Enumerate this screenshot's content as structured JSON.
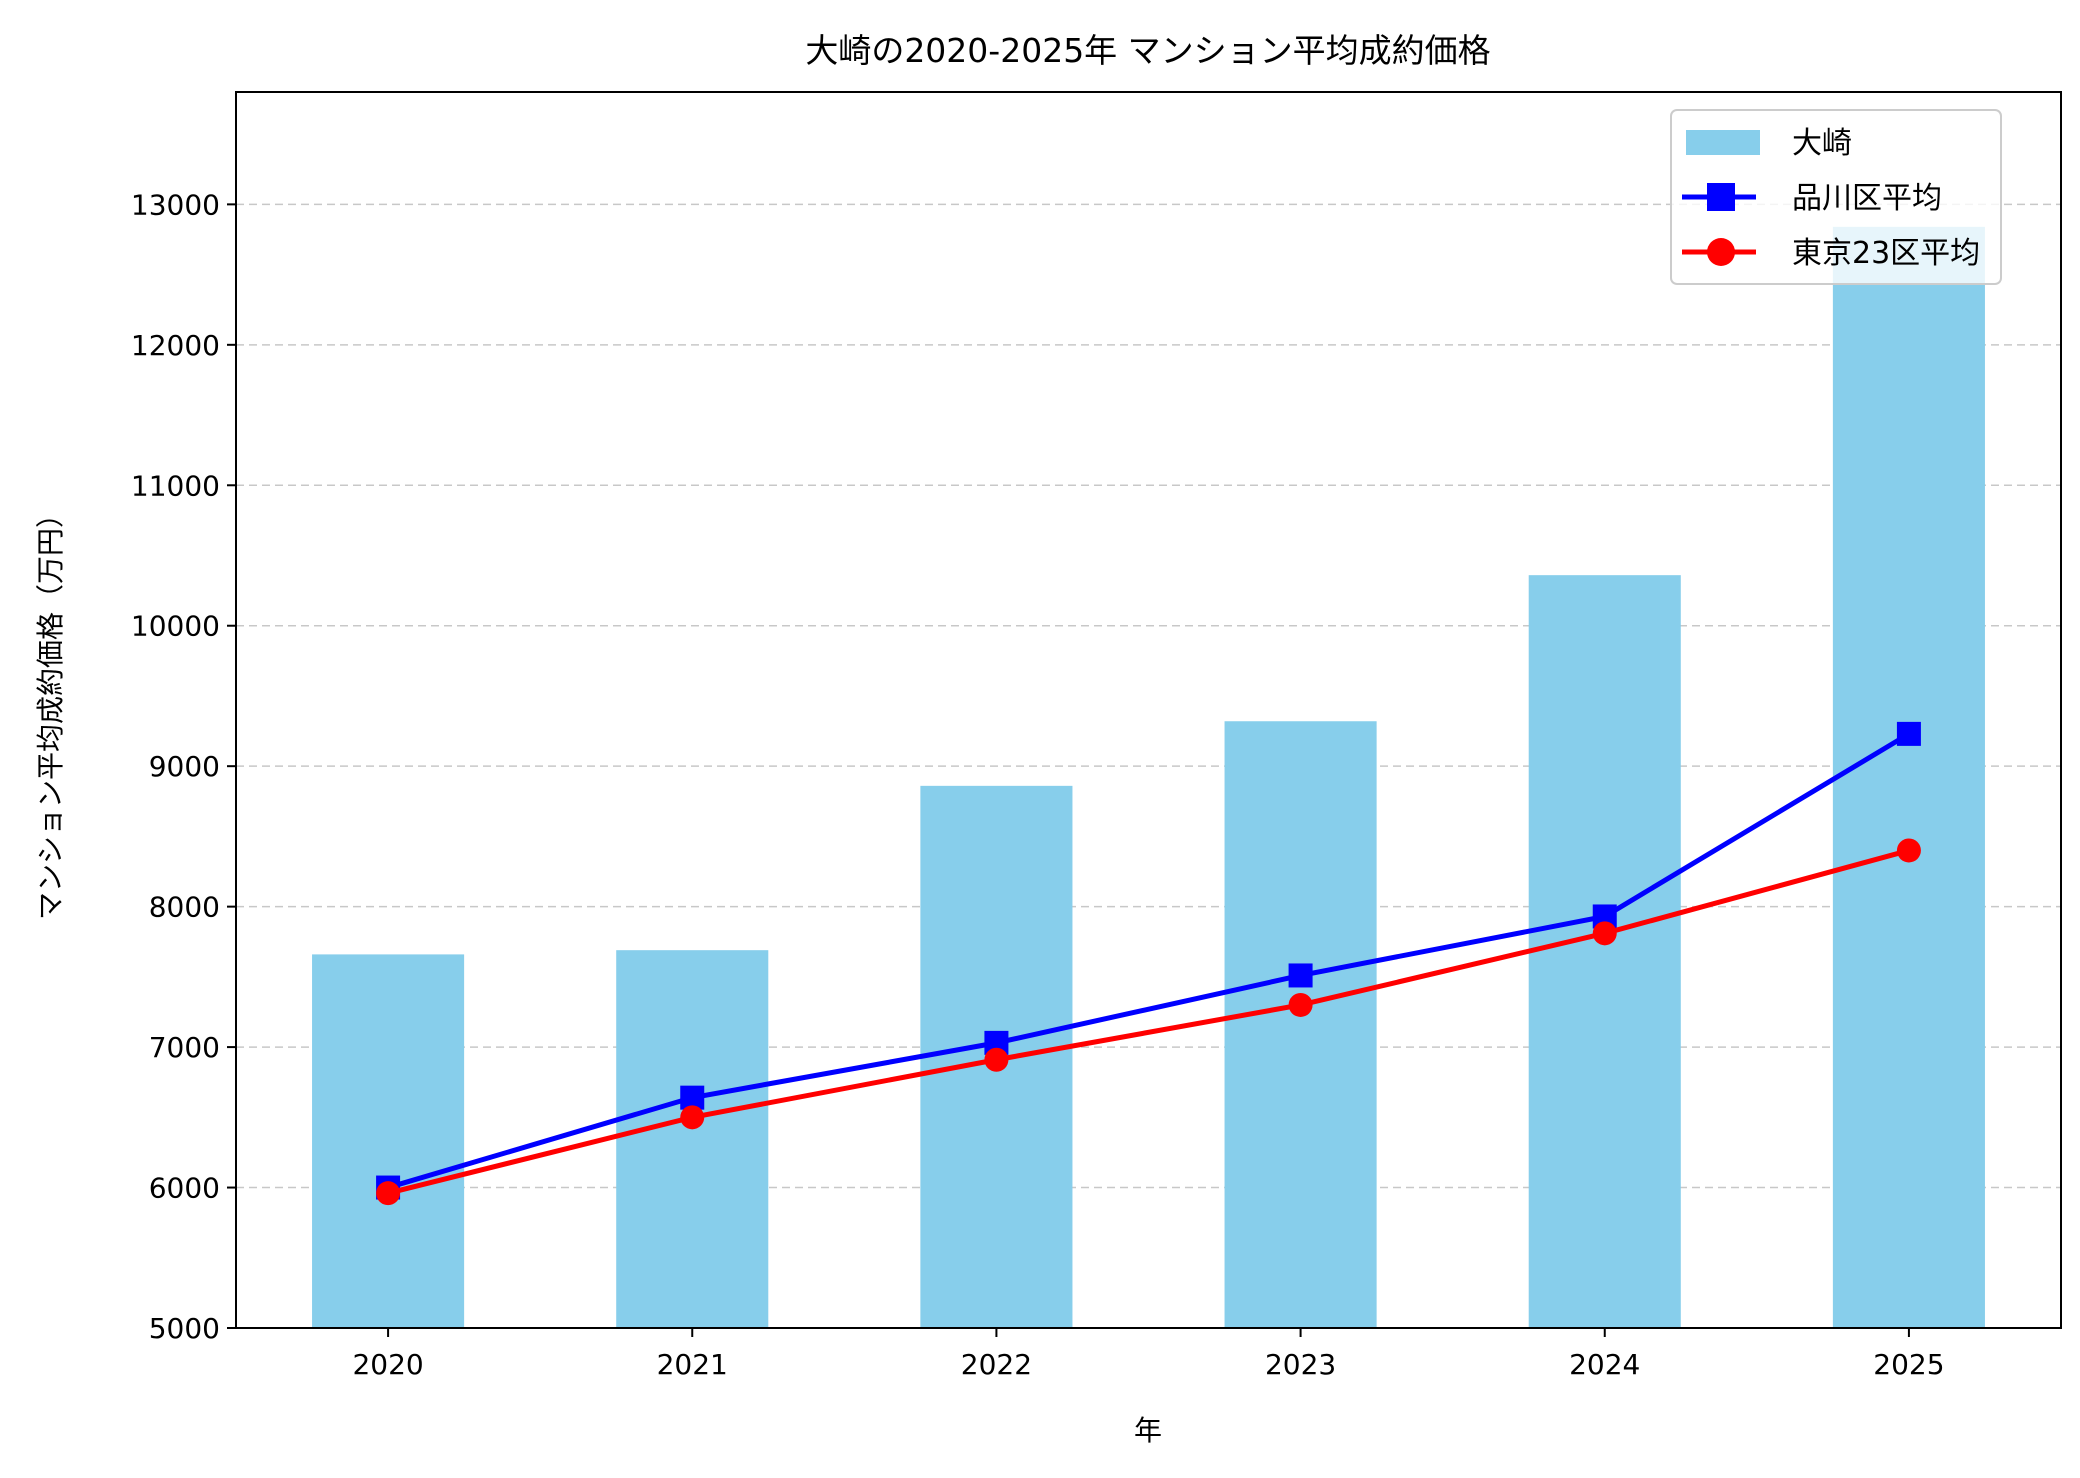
{
  "chart_data": {
    "type": "bar",
    "title": "大崎の2020-2025年 マンション平均成約価格",
    "xlabel": "年",
    "ylabel": "マンション平均成約価格（万円）",
    "categories": [
      "2020",
      "2021",
      "2022",
      "2023",
      "2024",
      "2025"
    ],
    "ylim": [
      5000,
      13800
    ],
    "yticks": [
      5000,
      6000,
      7000,
      8000,
      9000,
      10000,
      11000,
      12000,
      13000
    ],
    "grid": "y, dashed",
    "legend_position": "top-right",
    "series": [
      {
        "name": "大崎",
        "type": "bar",
        "color": "#87ceeb",
        "values": [
          7660,
          7690,
          8860,
          9320,
          10360,
          12840
        ]
      },
      {
        "name": "品川区平均",
        "type": "line",
        "marker": "square",
        "color": "#0000ff",
        "values": [
          6000,
          6640,
          7030,
          7510,
          7930,
          9230
        ]
      },
      {
        "name": "東京23区平均",
        "type": "line",
        "marker": "circle",
        "color": "#ff0000",
        "values": [
          5960,
          6500,
          6910,
          7300,
          7810,
          8400
        ]
      }
    ]
  }
}
